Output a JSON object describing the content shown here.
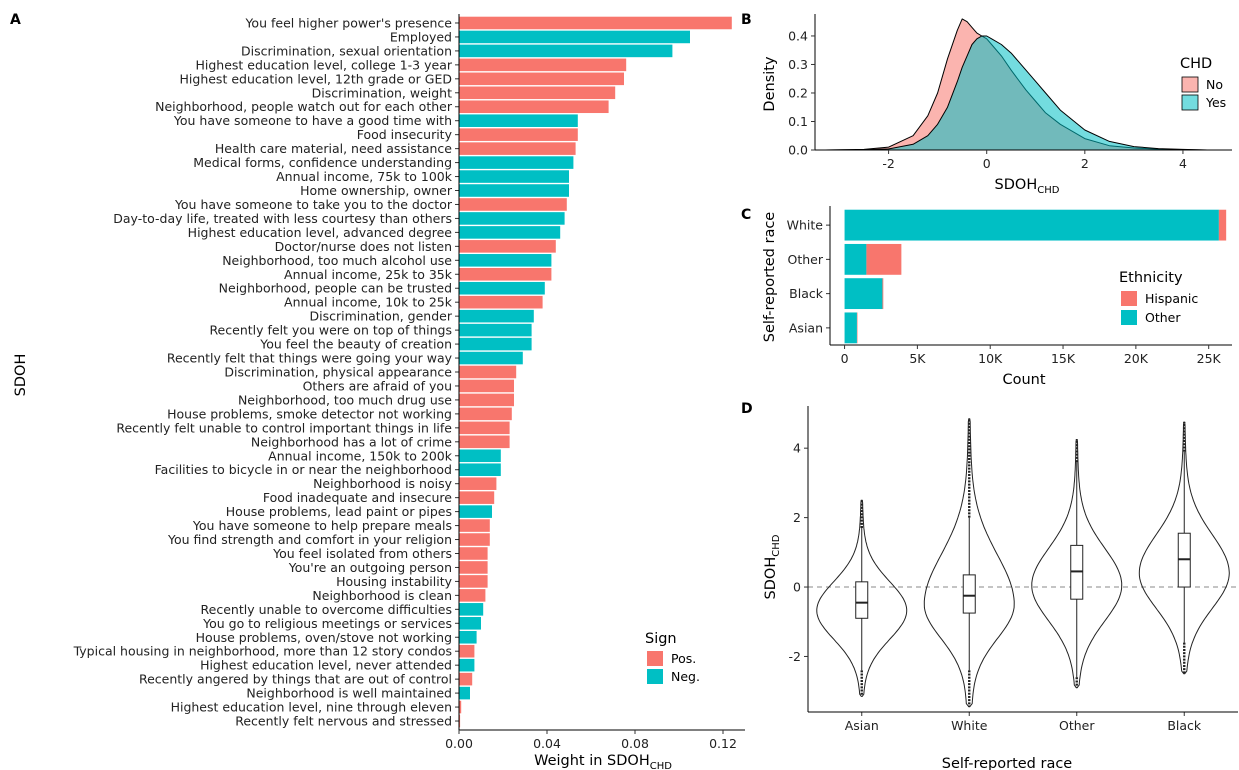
{
  "panels": {
    "A": "A",
    "B": "B",
    "C": "C",
    "D": "D"
  },
  "colors": {
    "pos": "#F8766D",
    "neg": "#00BFC4"
  },
  "chart_data": [
    {
      "panel": "A",
      "type": "bar",
      "orientation": "horizontal",
      "xlabel": "Weight in SDOH",
      "xlabel_sub": "CHD",
      "ylabel": "SDOH",
      "xlim": [
        0,
        0.13
      ],
      "x_ticks": [
        0,
        0.04,
        0.08,
        0.12
      ],
      "x_tick_labels": [
        "0.00",
        "0.04",
        "0.08",
        "0.12"
      ],
      "legend": {
        "title": "Sign",
        "position": "bottom-right",
        "items": [
          "Pos.",
          "Neg."
        ]
      },
      "items": [
        {
          "label": "You feel higher power's presence",
          "value": 0.124,
          "sign": "Pos."
        },
        {
          "label": "Employed",
          "value": 0.105,
          "sign": "Neg."
        },
        {
          "label": "Discrimination, sexual orientation",
          "value": 0.097,
          "sign": "Neg."
        },
        {
          "label": "Highest education level, college 1-3 year",
          "value": 0.076,
          "sign": "Pos."
        },
        {
          "label": "Highest education level, 12th grade or GED",
          "value": 0.075,
          "sign": "Pos."
        },
        {
          "label": "Discrimination, weight",
          "value": 0.071,
          "sign": "Pos."
        },
        {
          "label": "Neighborhood, people watch out for each other",
          "value": 0.068,
          "sign": "Pos."
        },
        {
          "label": "You have someone to have a good time with",
          "value": 0.054,
          "sign": "Neg."
        },
        {
          "label": "Food insecurity",
          "value": 0.054,
          "sign": "Pos."
        },
        {
          "label": "Health care material, need assistance",
          "value": 0.053,
          "sign": "Pos."
        },
        {
          "label": "Medical forms, confidence understanding",
          "value": 0.052,
          "sign": "Neg."
        },
        {
          "label": "Annual income, 75k to 100k",
          "value": 0.05,
          "sign": "Neg."
        },
        {
          "label": "Home ownership, owner",
          "value": 0.05,
          "sign": "Neg."
        },
        {
          "label": "You have someone to take you to the doctor",
          "value": 0.049,
          "sign": "Pos."
        },
        {
          "label": "Day-to-day life, treated with less courtesy than others",
          "value": 0.048,
          "sign": "Neg."
        },
        {
          "label": "Highest education level, advanced degree",
          "value": 0.046,
          "sign": "Neg."
        },
        {
          "label": "Doctor/nurse does not listen",
          "value": 0.044,
          "sign": "Pos."
        },
        {
          "label": "Neighborhood, too much alcohol use",
          "value": 0.042,
          "sign": "Neg."
        },
        {
          "label": "Annual income, 25k to 35k",
          "value": 0.042,
          "sign": "Pos."
        },
        {
          "label": "Neighborhood, people can be trusted",
          "value": 0.039,
          "sign": "Neg."
        },
        {
          "label": "Annual income, 10k to 25k",
          "value": 0.038,
          "sign": "Pos."
        },
        {
          "label": "Discrimination, gender",
          "value": 0.034,
          "sign": "Neg."
        },
        {
          "label": "Recently felt you were on top of things",
          "value": 0.033,
          "sign": "Neg."
        },
        {
          "label": "You feel the beauty of creation",
          "value": 0.033,
          "sign": "Neg."
        },
        {
          "label": "Recently felt that things were going your way",
          "value": 0.029,
          "sign": "Neg."
        },
        {
          "label": "Discrimination, physical appearance",
          "value": 0.026,
          "sign": "Pos."
        },
        {
          "label": "Others are afraid of you",
          "value": 0.025,
          "sign": "Pos."
        },
        {
          "label": "Neighborhood, too much drug use",
          "value": 0.025,
          "sign": "Pos."
        },
        {
          "label": "House problems, smoke detector not working",
          "value": 0.024,
          "sign": "Pos."
        },
        {
          "label": "Recently felt unable to control important things in life",
          "value": 0.023,
          "sign": "Pos."
        },
        {
          "label": "Neighborhood has a lot of crime",
          "value": 0.023,
          "sign": "Pos."
        },
        {
          "label": "Annual income, 150k to 200k",
          "value": 0.019,
          "sign": "Neg."
        },
        {
          "label": "Facilities to bicycle in or near the neighborhood",
          "value": 0.019,
          "sign": "Neg."
        },
        {
          "label": "Neighborhood is noisy",
          "value": 0.017,
          "sign": "Pos."
        },
        {
          "label": "Food inadequate and insecure",
          "value": 0.016,
          "sign": "Pos."
        },
        {
          "label": "House problems, lead paint or pipes",
          "value": 0.015,
          "sign": "Neg."
        },
        {
          "label": "You have someone to help prepare meals",
          "value": 0.014,
          "sign": "Pos."
        },
        {
          "label": "You find strength and comfort in your religion",
          "value": 0.014,
          "sign": "Pos."
        },
        {
          "label": "You feel isolated from others",
          "value": 0.013,
          "sign": "Pos."
        },
        {
          "label": "You're an outgoing person",
          "value": 0.013,
          "sign": "Pos."
        },
        {
          "label": "Housing instability",
          "value": 0.013,
          "sign": "Pos."
        },
        {
          "label": "Neighborhood is clean",
          "value": 0.012,
          "sign": "Pos."
        },
        {
          "label": "Recently unable to overcome difficulties",
          "value": 0.011,
          "sign": "Neg."
        },
        {
          "label": "You go to religious meetings or services",
          "value": 0.01,
          "sign": "Neg."
        },
        {
          "label": "House problems, oven/stove not working",
          "value": 0.008,
          "sign": "Neg."
        },
        {
          "label": "Typical housing in neighborhood, more than 12 story condos",
          "value": 0.007,
          "sign": "Pos."
        },
        {
          "label": "Highest education level, never attended",
          "value": 0.007,
          "sign": "Neg."
        },
        {
          "label": "Recently angered by things that are out of control",
          "value": 0.006,
          "sign": "Pos."
        },
        {
          "label": "Neighborhood is well maintained",
          "value": 0.005,
          "sign": "Neg."
        },
        {
          "label": "Highest education level, nine through eleven",
          "value": 0.001,
          "sign": "Pos."
        },
        {
          "label": "Recently felt nervous and stressed",
          "value": 0.0005,
          "sign": "Pos."
        }
      ]
    },
    {
      "panel": "B",
      "type": "area",
      "xlabel": "SDOH",
      "xlabel_sub": "CHD",
      "ylabel": "Density",
      "xlim": [
        -3.5,
        5.0
      ],
      "ylim": [
        0,
        0.47
      ],
      "x_ticks": [
        -2,
        0,
        2,
        4
      ],
      "x_tick_labels": [
        "-2",
        "0",
        "2",
        "4"
      ],
      "y_ticks": [
        0,
        0.1,
        0.2,
        0.3,
        0.4
      ],
      "y_tick_labels": [
        "0.0",
        "0.1",
        "0.2",
        "0.3",
        "0.4"
      ],
      "legend": {
        "title": "CHD",
        "position": "right",
        "items": [
          "No",
          "Yes"
        ]
      },
      "x": [
        -3.3,
        -2.5,
        -2.0,
        -1.5,
        -1.2,
        -1.0,
        -0.8,
        -0.6,
        -0.5,
        -0.4,
        -0.3,
        -0.2,
        -0.1,
        0.0,
        0.1,
        0.3,
        0.5,
        0.8,
        1.0,
        1.2,
        1.5,
        2.0,
        2.5,
        3.0,
        3.5,
        4.0,
        4.5,
        4.8
      ],
      "series": [
        {
          "name": "No",
          "values": [
            0.0,
            0.002,
            0.01,
            0.05,
            0.12,
            0.2,
            0.32,
            0.42,
            0.46,
            0.45,
            0.43,
            0.41,
            0.4,
            0.39,
            0.37,
            0.33,
            0.28,
            0.21,
            0.17,
            0.13,
            0.09,
            0.04,
            0.015,
            0.007,
            0.003,
            0.001,
            0.0,
            0.0
          ]
        },
        {
          "name": "Yes",
          "values": [
            0.0,
            0.001,
            0.004,
            0.02,
            0.05,
            0.09,
            0.15,
            0.24,
            0.29,
            0.33,
            0.37,
            0.39,
            0.4,
            0.4,
            0.39,
            0.37,
            0.34,
            0.28,
            0.24,
            0.2,
            0.14,
            0.07,
            0.03,
            0.012,
            0.005,
            0.002,
            0.0,
            0.0
          ]
        }
      ]
    },
    {
      "panel": "C",
      "type": "bar",
      "orientation": "horizontal",
      "stacked": true,
      "xlabel": "Count",
      "ylabel": "Self-reported race",
      "xlim": [
        -1000,
        26600
      ],
      "x_ticks": [
        0,
        5000,
        10000,
        15000,
        20000,
        25000
      ],
      "x_tick_labels": [
        "0",
        "5K",
        "10K",
        "15K",
        "20K",
        "25K"
      ],
      "categories": [
        "White",
        "Other",
        "Black",
        "Asian"
      ],
      "legend": {
        "title": "Ethnicity",
        "position": "right",
        "items": [
          "Hispanic",
          "Other"
        ]
      },
      "series": [
        {
          "name": "Other",
          "values": [
            25700,
            1500,
            2600,
            850
          ]
        },
        {
          "name": "Hispanic",
          "values": [
            500,
            2400,
            60,
            20
          ]
        }
      ]
    },
    {
      "panel": "D",
      "type": "violin",
      "xlabel": "Self-reported race",
      "ylabel": "SDOH",
      "ylabel_sub": "CHD",
      "ylim": [
        -3.6,
        5.1
      ],
      "y_ticks": [
        -2,
        0,
        2,
        4
      ],
      "y_tick_labels": [
        "-2",
        "0",
        "2",
        "4"
      ],
      "reference_line": 0,
      "categories": [
        "Asian",
        "White",
        "Other",
        "Black"
      ],
      "stats": [
        {
          "name": "Asian",
          "min": -3.15,
          "q1": -0.9,
          "median": -0.45,
          "q3": 0.15,
          "max": 2.5,
          "whisker_low": -2.4,
          "whisker_high": 1.7
        },
        {
          "name": "White",
          "min": -3.45,
          "q1": -0.75,
          "median": -0.25,
          "q3": 0.35,
          "max": 4.85,
          "whisker_low": -2.4,
          "whisker_high": 2.0
        },
        {
          "name": "Other",
          "min": -2.9,
          "q1": -0.35,
          "median": 0.45,
          "q3": 1.2,
          "max": 4.25,
          "whisker_low": -2.6,
          "whisker_high": 3.6
        },
        {
          "name": "Black",
          "min": -2.5,
          "q1": 0.0,
          "median": 0.8,
          "q3": 1.55,
          "max": 4.75,
          "whisker_low": -1.6,
          "whisker_high": 3.9
        }
      ]
    }
  ]
}
